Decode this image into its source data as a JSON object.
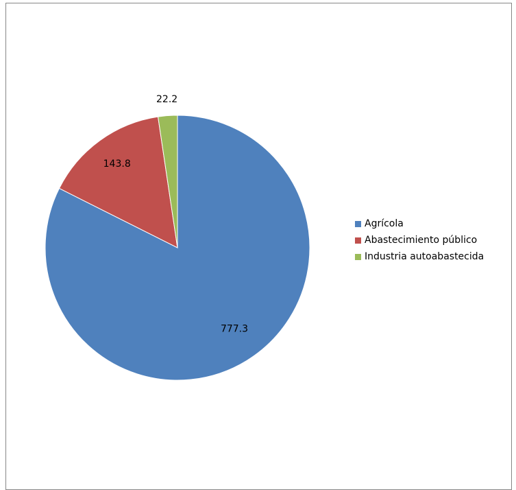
{
  "chart_data": {
    "type": "pie",
    "title": "",
    "categories": [
      "Agrícola",
      "Abastecimiento público",
      "Industria autoabastecida"
    ],
    "values": [
      777.3,
      143.8,
      22.2
    ],
    "value_labels": [
      "777.3",
      "143.8",
      "22.2"
    ],
    "colors": [
      "#4F81BD",
      "#C0504D",
      "#9BBB59"
    ],
    "legend_position": "right",
    "start_angle": "12 o'clock",
    "direction": "clockwise"
  }
}
